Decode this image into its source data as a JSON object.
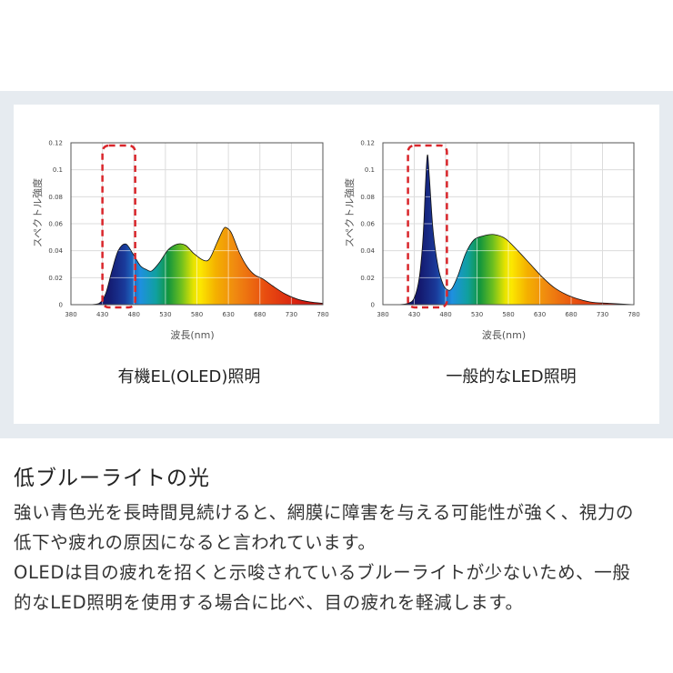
{
  "chart_data": [
    {
      "type": "area",
      "caption": "有機EL(OLED)照明",
      "xlabel": "波長(nm)",
      "ylabel": "スペクトル強度",
      "xlim": [
        380,
        780
      ],
      "ylim": [
        0,
        0.12
      ],
      "grid": true,
      "xticks": [
        "380",
        "430",
        "480",
        "530",
        "580",
        "630",
        "680",
        "730",
        "780"
      ],
      "yticks": [
        "0",
        "0.02",
        "0.04",
        "0.06",
        "0.08",
        "0.1",
        "0.12"
      ],
      "highlight_range": [
        430,
        482
      ],
      "x": [
        380,
        410,
        425,
        435,
        445,
        455,
        467,
        478,
        490,
        500,
        508,
        520,
        535,
        550,
        562,
        575,
        590,
        600,
        612,
        622,
        627,
        635,
        648,
        660,
        672,
        685,
        700,
        720,
        740,
        760,
        780
      ],
      "y": [
        0,
        0,
        0.001,
        0.008,
        0.025,
        0.04,
        0.045,
        0.038,
        0.029,
        0.026,
        0.025,
        0.031,
        0.041,
        0.045,
        0.044,
        0.038,
        0.033,
        0.034,
        0.046,
        0.056,
        0.057,
        0.053,
        0.038,
        0.028,
        0.022,
        0.019,
        0.014,
        0.008,
        0.004,
        0.002,
        0.001
      ]
    },
    {
      "type": "area",
      "caption": "一般的なLED照明",
      "xlabel": "波長(nm)",
      "ylabel": "スペクトル強度",
      "xlim": [
        380,
        780
      ],
      "ylim": [
        0,
        0.12
      ],
      "grid": true,
      "xticks": [
        "380",
        "430",
        "480",
        "530",
        "580",
        "630",
        "680",
        "730",
        "780"
      ],
      "yticks": [
        "0",
        "0.02",
        "0.04",
        "0.06",
        "0.08",
        "0.1",
        "0.12"
      ],
      "highlight_range": [
        420,
        482
      ],
      "x": [
        380,
        405,
        420,
        430,
        438,
        444,
        448,
        451,
        454,
        460,
        468,
        476,
        483,
        490,
        500,
        512,
        525,
        540,
        557,
        575,
        595,
        615,
        635,
        655,
        680,
        710,
        740,
        780
      ],
      "y": [
        0,
        0,
        0.001,
        0.005,
        0.02,
        0.05,
        0.09,
        0.111,
        0.095,
        0.055,
        0.028,
        0.015,
        0.011,
        0.012,
        0.022,
        0.038,
        0.048,
        0.051,
        0.052,
        0.049,
        0.04,
        0.03,
        0.02,
        0.012,
        0.006,
        0.002,
        0.001,
        0
      ]
    }
  ],
  "colors": {
    "highlight": "#d9262b",
    "band": "#e6ebf0"
  },
  "text": {
    "title": "低ブルーライトの光",
    "lines": [
      "強い青色光を長時間見続けると、網膜に障害を与える可能性が強く、視力の",
      "低下や疲れの原因になると言われています。",
      "OLEDは目の疲れを招くと示唆されているブルーライトが少ないため、一般",
      "的なLED照明を使用する場合に比べ、目の疲れを軽減します。"
    ]
  }
}
